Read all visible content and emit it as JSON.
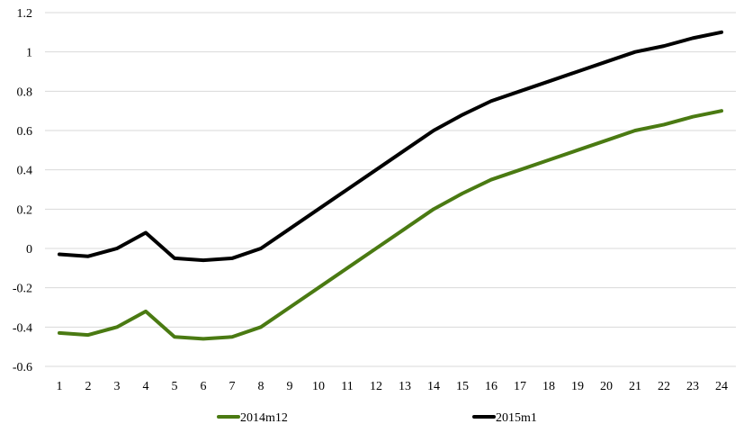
{
  "chart_data": {
    "type": "line",
    "title": "",
    "xlabel": "",
    "ylabel": "",
    "x": [
      1,
      2,
      3,
      4,
      5,
      6,
      7,
      8,
      9,
      10,
      11,
      12,
      13,
      14,
      15,
      16,
      17,
      18,
      19,
      20,
      21,
      22,
      23,
      24
    ],
    "x_tick_labels": [
      "1",
      "2",
      "3",
      "4",
      "5",
      "6",
      "7",
      "8",
      "9",
      "10",
      "11",
      "12",
      "13",
      "14",
      "15",
      "16",
      "17",
      "18",
      "19",
      "20",
      "21",
      "22",
      "23",
      "24"
    ],
    "ylim": [
      -0.6,
      1.2
    ],
    "y_ticks": [
      -0.6,
      -0.4,
      -0.2,
      0,
      0.2,
      0.4,
      0.6,
      0.8,
      1,
      1.2
    ],
    "y_tick_labels": [
      "-0.6",
      "-0.4",
      "-0.2",
      "0",
      "0.2",
      "0.4",
      "0.6",
      "0.8",
      "1",
      "1.2"
    ],
    "grid": "horizontal",
    "legend_position": "bottom",
    "series": [
      {
        "name": "2014m12",
        "color": "#4a7a12",
        "values": [
          -0.43,
          -0.44,
          -0.4,
          -0.32,
          -0.45,
          -0.46,
          -0.45,
          -0.4,
          -0.3,
          -0.2,
          -0.1,
          0.0,
          0.1,
          0.2,
          0.28,
          0.35,
          0.4,
          0.45,
          0.5,
          0.55,
          0.6,
          0.63,
          0.67,
          0.7
        ]
      },
      {
        "name": "2015m1",
        "color": "#000000",
        "values": [
          -0.03,
          -0.04,
          0.0,
          0.08,
          -0.05,
          -0.06,
          -0.05,
          0.0,
          0.1,
          0.2,
          0.3,
          0.4,
          0.5,
          0.6,
          0.68,
          0.75,
          0.8,
          0.85,
          0.9,
          0.95,
          1.0,
          1.03,
          1.07,
          1.1
        ]
      }
    ]
  }
}
